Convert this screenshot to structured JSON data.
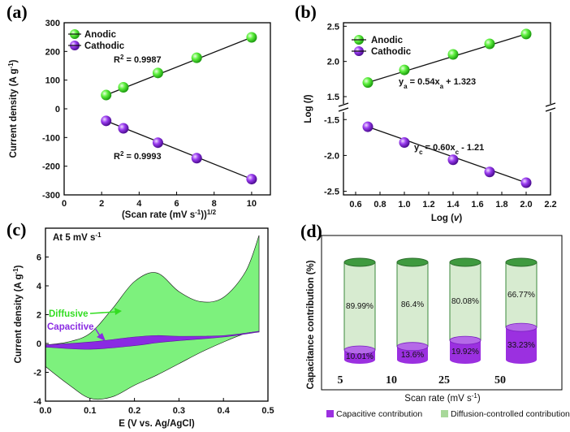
{
  "colors": {
    "anodic": "#33dd22",
    "cathodic": "#8a2be2",
    "diffusive_fill": "#66ee66",
    "capacitive_fill": "#8a2be2",
    "cylinder_green": "#d7ebd0",
    "cylinder_green_edge": "#3b8a3b",
    "cylinder_purple": "#9b30e0"
  },
  "chart_data": [
    {
      "panel": "(a)",
      "type": "scatter",
      "xlabel": "(Scan rate (mV s⁻¹))¹ᐟ²",
      "ylabel": "Current density (A g⁻¹)",
      "xlim": [
        0,
        11
      ],
      "ylim": [
        -300,
        300
      ],
      "xticks": [
        0,
        2,
        4,
        6,
        8,
        10
      ],
      "yticks": [
        -300,
        -200,
        -100,
        0,
        100,
        200,
        300
      ],
      "legend": "top-left",
      "series": [
        {
          "name": "Anodic",
          "x": [
            2.24,
            3.16,
            5.0,
            7.07,
            10.0
          ],
          "y": [
            48,
            75,
            125,
            178,
            249
          ]
        },
        {
          "name": "Cathodic",
          "x": [
            2.24,
            3.16,
            5.0,
            7.07,
            10.0
          ],
          "y": [
            -42,
            -68,
            -118,
            -172,
            -245
          ]
        }
      ],
      "annotations": [
        "R² = 0.9987",
        "R² = 0.9993"
      ]
    },
    {
      "panel": "(b)",
      "type": "scatter",
      "xlabel": "Log (v)",
      "ylabel": "Log (I)",
      "xlim": [
        0.5,
        2.2
      ],
      "xticks": [
        0.6,
        0.8,
        1.0,
        1.2,
        1.4,
        1.6,
        1.8,
        2.0,
        2.2
      ],
      "yticks_upper": [
        1.5,
        2.0,
        2.5
      ],
      "yticks_lower": [
        -2.5,
        -2.0,
        -1.5
      ],
      "legend": "top-left",
      "series": [
        {
          "name": "Anodic",
          "x": [
            0.7,
            1.0,
            1.4,
            1.7,
            2.0
          ],
          "y": [
            1.7,
            1.88,
            2.1,
            2.25,
            2.39
          ]
        },
        {
          "name": "Cathodic",
          "x": [
            0.7,
            1.0,
            1.4,
            1.7,
            2.0
          ],
          "y": [
            -1.6,
            -1.82,
            -2.06,
            -2.23,
            -2.38
          ]
        }
      ],
      "annotations": [
        "yₐ = 0.54xₐ + 1.323",
        "y꜀ = 0.60x꜀ - 1.21"
      ]
    },
    {
      "panel": "(c)",
      "type": "area",
      "xlabel": "E (V vs. Ag/AgCl)",
      "ylabel": "Current density (A g⁻¹)",
      "xlim": [
        0.0,
        0.5
      ],
      "ylim": [
        -4,
        8
      ],
      "xticks": [
        0.0,
        0.1,
        0.2,
        0.3,
        0.4,
        0.5
      ],
      "yticks": [
        -4,
        -2,
        0,
        2,
        4,
        6
      ],
      "title": "At 5 mV s⁻¹",
      "series": [
        {
          "name": "Diffusive",
          "upper_x": [
            0.0,
            0.05,
            0.1,
            0.15,
            0.2,
            0.25,
            0.3,
            0.35,
            0.4,
            0.45,
            0.48
          ],
          "upper_y": [
            -0.1,
            0.1,
            0.7,
            2.4,
            4.3,
            4.9,
            3.6,
            2.9,
            3.2,
            5.0,
            7.5
          ],
          "lower_x": [
            0.48,
            0.45,
            0.4,
            0.35,
            0.3,
            0.25,
            0.2,
            0.15,
            0.1,
            0.05,
            0.0
          ],
          "lower_y": [
            0.8,
            0.7,
            0.1,
            -0.6,
            -1.4,
            -2.2,
            -2.9,
            -3.7,
            -3.8,
            -2.8,
            -1.6
          ]
        },
        {
          "name": "Capacitive",
          "upper_x": [
            0.0,
            0.1,
            0.2,
            0.25,
            0.3,
            0.4,
            0.48
          ],
          "upper_y": [
            -0.1,
            0.1,
            0.45,
            0.55,
            0.5,
            0.55,
            0.85
          ],
          "lower_x": [
            0.48,
            0.4,
            0.3,
            0.25,
            0.2,
            0.1,
            0.0
          ],
          "lower_y": [
            0.8,
            0.45,
            0.2,
            0.05,
            -0.15,
            -0.4,
            -0.25
          ]
        }
      ],
      "labels": [
        "Diffusive",
        "Capacitive"
      ]
    },
    {
      "panel": "(d)",
      "type": "bar",
      "ylabel": "Capacitance contribution (%)",
      "xlabel": "Scan rate (mV s⁻¹)",
      "categories": [
        "5",
        "10",
        "25",
        "50"
      ],
      "series": [
        {
          "name": "Capacitive contribution",
          "values": [
            10.01,
            13.6,
            19.92,
            33.23
          ],
          "labels": [
            "10.01%",
            "13.6%",
            "19.92%",
            "33.23%"
          ]
        },
        {
          "name": "Diffusion-controlled contribution",
          "values": [
            89.99,
            86.4,
            80.08,
            66.77
          ],
          "labels": [
            "89.99%",
            "86.4%",
            "80.08%",
            "66.77%"
          ]
        }
      ],
      "legend": "bottom"
    }
  ]
}
